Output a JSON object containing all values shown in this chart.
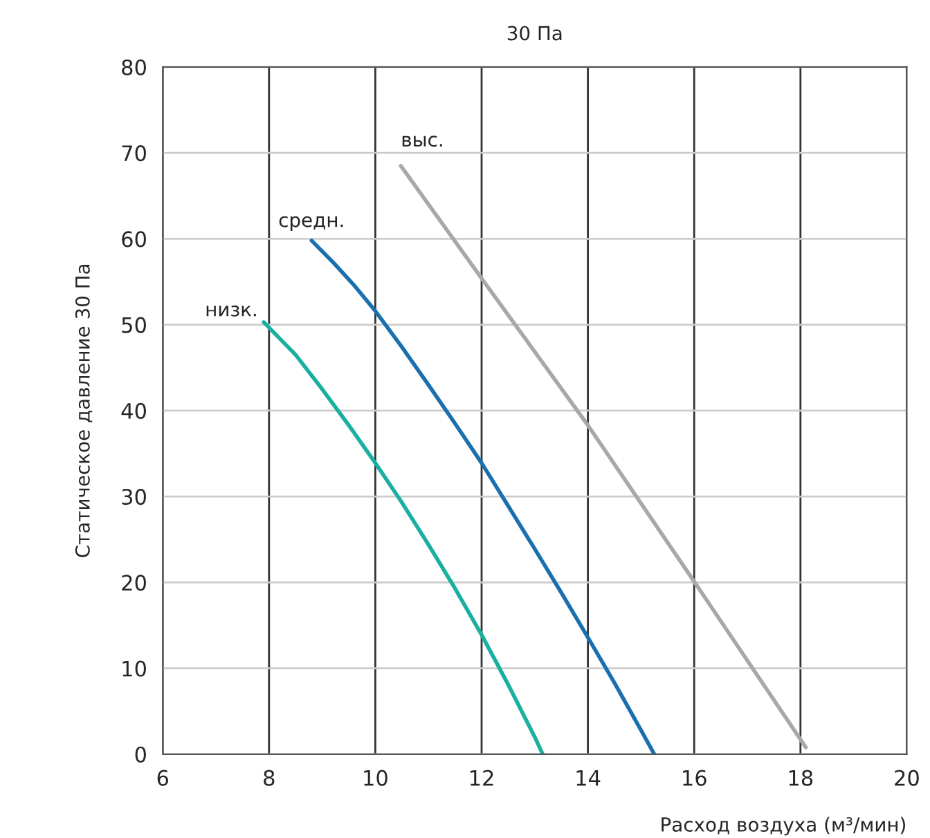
{
  "chart_data": {
    "type": "line",
    "title": "30 Па",
    "xlabel": "Расход воздуха (м³/мин)",
    "ylabel": "Статическое давление 30 Па",
    "xlim": [
      6,
      20
    ],
    "xticks": [
      6,
      8,
      10,
      12,
      14,
      16,
      18,
      20
    ],
    "ylim": [
      0,
      80
    ],
    "yticks": [
      0,
      10,
      20,
      30,
      40,
      50,
      60,
      70,
      80
    ],
    "grid": true,
    "legend": false,
    "marker": "none",
    "line_style": "solid",
    "series": [
      {
        "name": "низк.",
        "color": "#19b0a0",
        "x": [
          7.9,
          8.5,
          9,
          9.5,
          10,
          10.5,
          11,
          11.5,
          12,
          12.5,
          13,
          13.15
        ],
        "values": [
          50.3,
          46.5,
          42.5,
          38.3,
          33.9,
          29.3,
          24.4,
          19.3,
          13.9,
          8.1,
          2,
          0
        ]
      },
      {
        "name": "средн.",
        "color": "#1a6faf",
        "x": [
          8.8,
          9.2,
          9.6,
          10,
          10.5,
          11,
          11.5,
          12,
          12.5,
          13,
          13.5,
          14,
          14.5,
          15,
          15.25
        ],
        "values": [
          59.8,
          57.3,
          54.6,
          51.6,
          47.4,
          43,
          38.5,
          33.9,
          28.9,
          23.9,
          18.8,
          13.6,
          8.3,
          2.8,
          0
        ]
      },
      {
        "name": "выс.",
        "color": "#a8a8a8",
        "x": [
          10.48,
          12,
          14,
          16,
          18.1
        ],
        "values": [
          68.5,
          55.4,
          38.3,
          20.1,
          0.8
        ]
      }
    ]
  }
}
